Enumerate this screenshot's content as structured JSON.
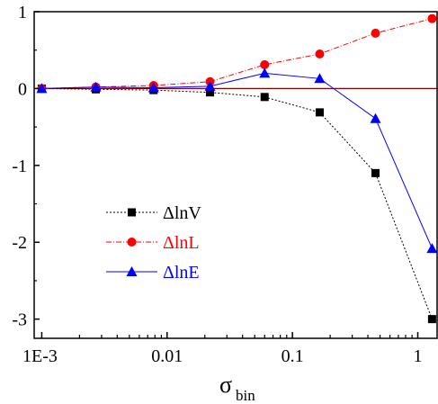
{
  "chart_data": {
    "type": "line",
    "xlabel": "σ",
    "xlabel_subscript": "bin",
    "ylabel": "",
    "xscale": "log",
    "xlim": [
      0.00087,
      1.45
    ],
    "ylim": [
      -3.25,
      1.0
    ],
    "x_ticks": [
      {
        "value": 0.001,
        "label": "1E-3"
      },
      {
        "value": 0.01,
        "label": "0.01"
      },
      {
        "value": 0.1,
        "label": "0.1"
      },
      {
        "value": 1,
        "label": "1"
      }
    ],
    "y_ticks": [
      {
        "value": 1,
        "label": "1"
      },
      {
        "value": 0,
        "label": "0"
      },
      {
        "value": -1,
        "label": "-1"
      },
      {
        "value": -2,
        "label": "-2"
      },
      {
        "value": -3,
        "label": "-3"
      }
    ],
    "x": [
      0.001,
      0.0027,
      0.0078,
      0.022,
      0.06,
      0.165,
      0.46,
      1.3
    ],
    "reference_line": {
      "y": 0,
      "color": "#8b0000"
    },
    "series": [
      {
        "name": "ΔlnV",
        "color": "#000000",
        "marker": "square",
        "dash": "2,2",
        "values": [
          0.0,
          -0.01,
          -0.02,
          -0.05,
          -0.11,
          -0.31,
          -1.1,
          -3.0
        ]
      },
      {
        "name": "ΔlnL",
        "color": "#ff0000",
        "marker": "circle",
        "dash": "6,2,1,2",
        "values": [
          0.0,
          0.02,
          0.04,
          0.09,
          0.31,
          0.45,
          0.72,
          0.91
        ]
      },
      {
        "name": "ΔlnE",
        "color": "#0000ff",
        "marker": "triangle",
        "dash": "",
        "values": [
          0.0,
          0.02,
          0.01,
          0.03,
          0.2,
          0.13,
          -0.39,
          -2.08
        ]
      }
    ],
    "legend_position": "lower-left",
    "grid": false
  }
}
